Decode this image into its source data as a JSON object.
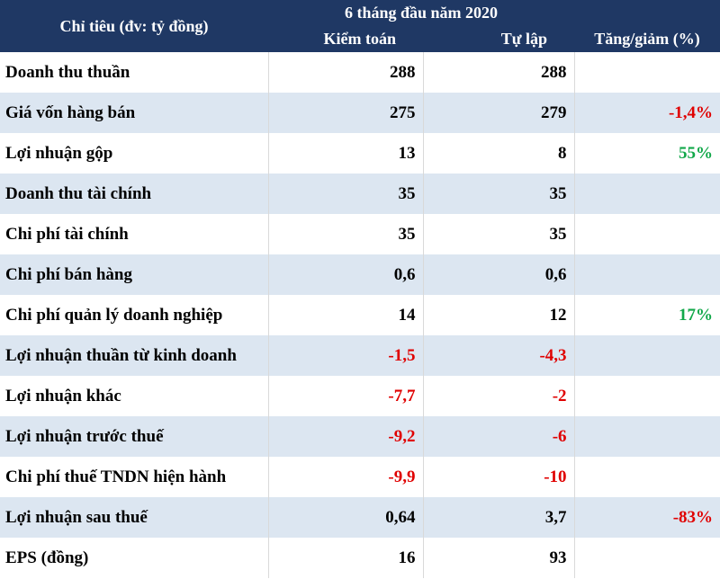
{
  "table": {
    "header": {
      "indicator": "Chỉ tiêu (đv: tỷ đồng)",
      "period": "6 tháng đầu năm 2020",
      "columns": [
        "Kiểm toán",
        "Tự lập",
        "Tăng/giảm (%)"
      ]
    },
    "rows": [
      [
        "Doanh thu thuần",
        "288",
        "288",
        null
      ],
      [
        "Giá vốn hàng bán",
        "275",
        "279",
        "-1,4%"
      ],
      [
        "Lợi nhuận gộp",
        "13",
        "8",
        "55%"
      ],
      [
        "Doanh thu tài chính",
        "35",
        "35",
        null
      ],
      [
        "Chi phí tài chính",
        "35",
        "35",
        null
      ],
      [
        "Chi phí bán hàng",
        "0,6",
        "0,6",
        null
      ],
      [
        "Chi phí quản lý doanh nghiệp",
        "14",
        "12",
        "17%"
      ],
      [
        "Lợi nhuận thuần từ kinh doanh",
        "-1,5",
        "-4,3",
        null
      ],
      [
        "Lợi nhuận khác",
        "-7,7",
        "-2",
        null
      ],
      [
        "Lợi nhuận trước thuế",
        "-9,2",
        "-6",
        null
      ],
      [
        "Chi phí thuế TNDN hiện hành",
        "-9,9",
        "-10",
        null
      ],
      [
        "Lợi nhuận sau thuế",
        "0,64",
        "3,7",
        "-83%"
      ],
      [
        "EPS (đồng)",
        "16",
        "93",
        null
      ]
    ]
  }
}
